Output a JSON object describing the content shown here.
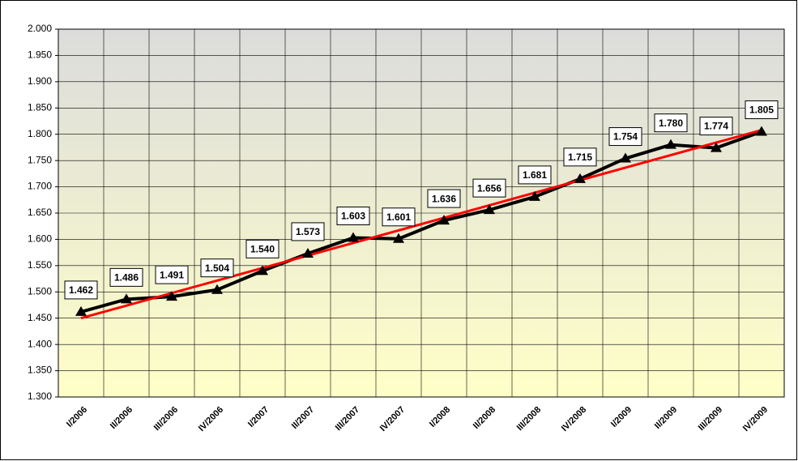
{
  "chart_data": {
    "type": "line",
    "categories": [
      "I/2006",
      "II/2006",
      "III/2006",
      "IV/2006",
      "I/2007",
      "II/2007",
      "III/2007",
      "IV/2007",
      "I/2008",
      "II/2008",
      "III/2008",
      "IV/2008",
      "I/2009",
      "II/2009",
      "III/2009",
      "IV/2009"
    ],
    "series": [
      {
        "color": "#000000",
        "values": [
          1462,
          1486,
          1491,
          1504,
          1540,
          1573,
          1603,
          1601,
          1636,
          1656,
          1681,
          1715,
          1754,
          1780,
          1774,
          1805
        ],
        "value_labels": [
          "1.462",
          "1.486",
          "1.491",
          "1.504",
          "1.540",
          "1.573",
          "1.603",
          "1.601",
          "1.636",
          "1.656",
          "1.681",
          "1.715",
          "1.754",
          "1.780",
          "1.774",
          "1.805"
        ]
      }
    ],
    "trend": {
      "color": "#ff0000",
      "values": [
        1450,
        1808
      ]
    },
    "ylim": [
      1300,
      2000
    ],
    "yticks": [
      {
        "value": 1300,
        "label": "1.300"
      },
      {
        "value": 1350,
        "label": "1.350"
      },
      {
        "value": 1400,
        "label": "1.400"
      },
      {
        "value": 1450,
        "label": "1.450"
      },
      {
        "value": 1500,
        "label": "1.500"
      },
      {
        "value": 1550,
        "label": "1.550"
      },
      {
        "value": 1600,
        "label": "1.600"
      },
      {
        "value": 1650,
        "label": "1.650"
      },
      {
        "value": 1700,
        "label": "1.700"
      },
      {
        "value": 1750,
        "label": "1.750"
      },
      {
        "value": 1800,
        "label": "1.800"
      },
      {
        "value": 1850,
        "label": "1.850"
      },
      {
        "value": 1900,
        "label": "1.900"
      },
      {
        "value": 1950,
        "label": "1.950"
      },
      {
        "value": 2000,
        "label": "2.000"
      }
    ],
    "grid": true
  }
}
